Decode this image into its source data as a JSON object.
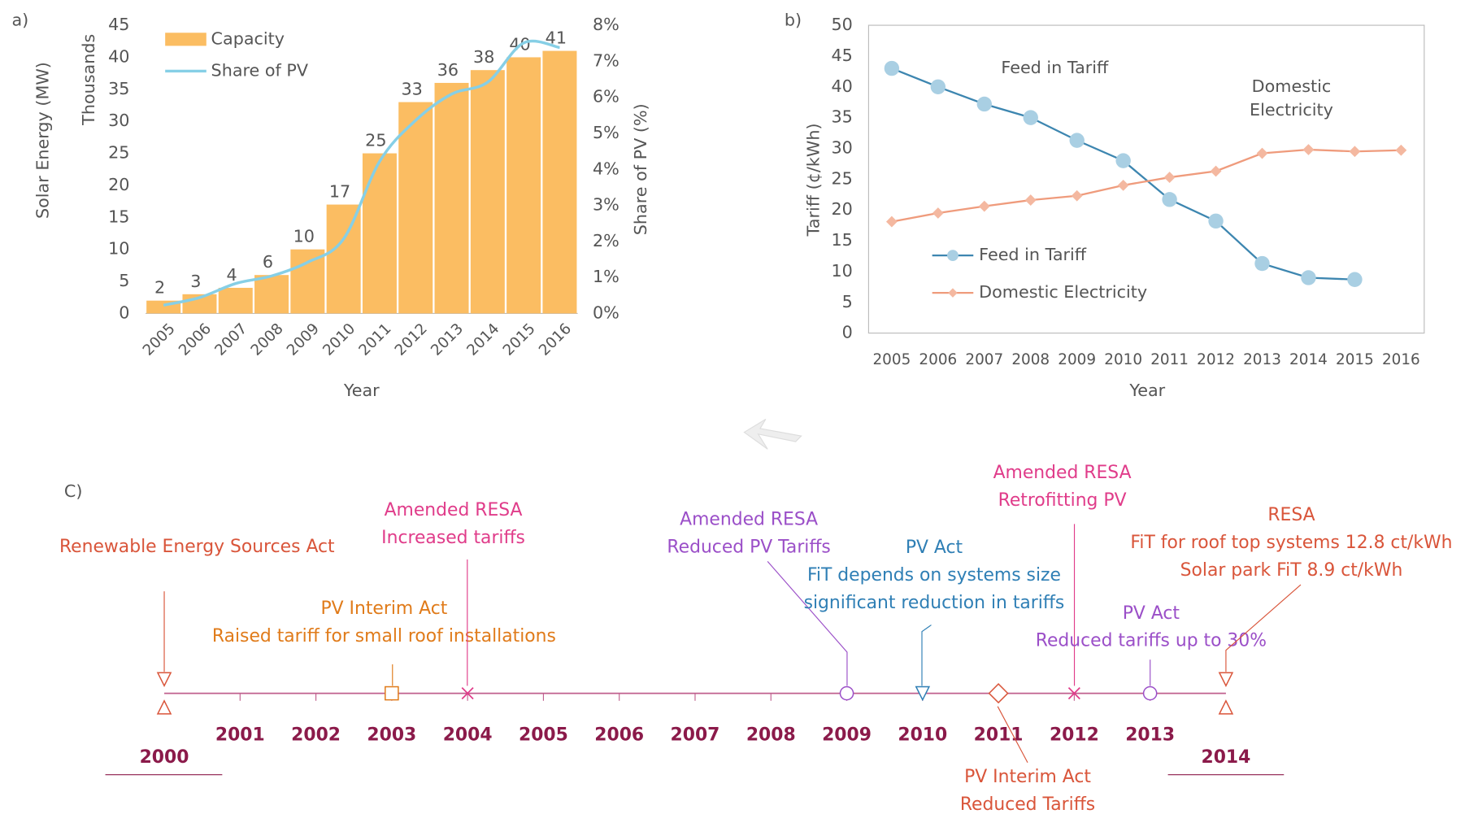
{
  "chart_data": [
    {
      "type": "bar",
      "panel_label": "a)",
      "categories": [
        "2005",
        "2006",
        "2007",
        "2008",
        "2009",
        "2010",
        "2011",
        "2012",
        "2013",
        "2014",
        "2015",
        "2016"
      ],
      "series": [
        {
          "name": "Capacity",
          "type": "bar",
          "color": "#fbbd62",
          "values": [
            2,
            3,
            4,
            6,
            10,
            17,
            25,
            33,
            36,
            38,
            40,
            41
          ]
        },
        {
          "name": "Share of PV",
          "type": "line",
          "axis": "y2",
          "color": "#86cfe6",
          "values": [
            0.23,
            0.44,
            0.83,
            1.04,
            1.42,
            2.07,
            4.22,
            5.36,
            6.09,
            6.42,
            7.51,
            7.38
          ]
        }
      ],
      "ylabel": "Solar Energy (MW)",
      "yunit_label": "Thousands",
      "y2label": "Share of PV (%)",
      "xlabel": "Year",
      "ylim": [
        0,
        45
      ],
      "yticks": [
        0,
        5,
        10,
        15,
        20,
        25,
        30,
        35,
        40,
        45
      ],
      "y2lim": [
        0,
        8
      ],
      "y2ticks": [
        {
          "value": 0,
          "label": "0%"
        },
        {
          "value": 1,
          "label": "1%"
        },
        {
          "value": 2,
          "label": "2%"
        },
        {
          "value": 3,
          "label": "3%"
        },
        {
          "value": 4,
          "label": "4%"
        },
        {
          "value": 5,
          "label": "5%"
        },
        {
          "value": 6,
          "label": "6%"
        },
        {
          "value": 7,
          "label": "7%"
        },
        {
          "value": 8,
          "label": "8%"
        }
      ]
    },
    {
      "type": "line",
      "panel_label": "b)",
      "categories": [
        "2005",
        "2006",
        "2007",
        "2008",
        "2009",
        "2010",
        "2011",
        "2012",
        "2013",
        "2014",
        "2015",
        "2016"
      ],
      "series": [
        {
          "name": "Feed in Tariff",
          "color": "#3d86b0",
          "marker_color": "#a9cfe3",
          "marker": "circle",
          "values": [
            43,
            40,
            37.2,
            35,
            31.3,
            28,
            21.7,
            18.2,
            11.3,
            9,
            8.7,
            null
          ]
        },
        {
          "name": "Domestic Electricity",
          "color": "#ef9b7c",
          "marker_color": "#f4b8a0",
          "marker": "diamond",
          "values": [
            18.1,
            19.5,
            20.6,
            21.6,
            22.3,
            24,
            25.3,
            26.3,
            29.2,
            29.8,
            29.5,
            29.7
          ]
        }
      ],
      "annotations": [
        [
          "Feed in Tariff"
        ],
        [
          "Domestic",
          "Electricity"
        ]
      ],
      "ylabel": "Tariff (¢/kWh)",
      "xlabel": "Year",
      "ylim": [
        0,
        50
      ],
      "yticks": [
        0,
        5,
        10,
        15,
        20,
        25,
        30,
        35,
        40,
        45,
        50
      ]
    }
  ],
  "timeline": {
    "panel_label": "C)",
    "axis_color": "#c0608e",
    "years": [
      "2000",
      "2001",
      "2002",
      "2003",
      "2004",
      "2005",
      "2006",
      "2007",
      "2008",
      "2009",
      "2010",
      "2011",
      "2012",
      "2013",
      "2014"
    ],
    "events": [
      {
        "color": "#d9553a",
        "marker": "triangles",
        "lines": [
          "Renewable Energy Sources Act"
        ]
      },
      {
        "color": "#e07b1a",
        "marker": "square",
        "lines": [
          "PV Interim Act",
          "Raised tariff for small roof installations"
        ]
      },
      {
        "color": "#e03c8a",
        "marker": "cross",
        "lines": [
          "Amended RESA",
          "Increased tariffs"
        ]
      },
      {
        "color": "#9b4fc8",
        "marker": "circle",
        "lines": [
          "Amended RESA",
          "Reduced PV Tariffs"
        ]
      },
      {
        "color": "#2f7fb5",
        "marker": "triangle",
        "lines": [
          "PV Act",
          "FiT depends on systems size",
          "significant reduction in tariffs"
        ]
      },
      {
        "color": "#d9553a",
        "marker": "diamond",
        "lines": [
          "PV Interim Act",
          "Reduced Tariffs"
        ]
      },
      {
        "color": "#e03c8a",
        "marker": "cross",
        "lines": [
          "Amended RESA",
          "Retrofitting PV"
        ]
      },
      {
        "color": "#9b4fc8",
        "marker": "circle",
        "lines": [
          "PV Act",
          "Reduced tariffs up to 30%"
        ]
      },
      {
        "color": "#d9553a",
        "marker": "triangles",
        "lines": [
          "RESA",
          "FiT for roof top systems 12.8 ct/kWh",
          "Solar park FiT 8.9 ct/kWh"
        ]
      }
    ]
  }
}
